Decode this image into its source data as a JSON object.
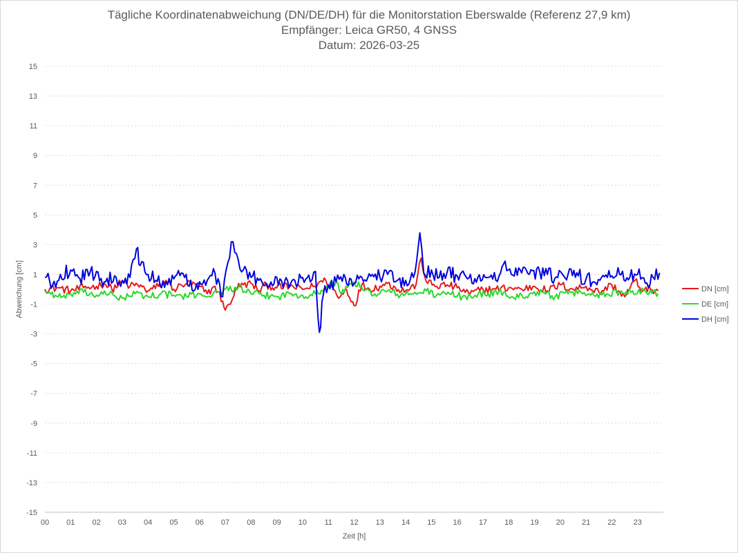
{
  "chart_data": {
    "type": "line",
    "title": "Tägliche Koordinatenabweichung (DN/DE/DH) für die Monitorstation Eberswalde (Referenz 27,9 km)",
    "subtitle": "Empfänger: Leica GR50, 4 GNSS",
    "date_line": "Datum: 2026-03-25",
    "xlabel": "Zeit [h]",
    "ylabel": "Abweichung [cm]",
    "xlim": [
      0,
      24
    ],
    "ylim": [
      -15,
      15
    ],
    "x_ticks": [
      "00",
      "01",
      "02",
      "03",
      "04",
      "05",
      "06",
      "07",
      "08",
      "09",
      "10",
      "11",
      "12",
      "13",
      "14",
      "15",
      "16",
      "17",
      "18",
      "19",
      "20",
      "21",
      "22",
      "23"
    ],
    "y_ticks": [
      15,
      13,
      11,
      9,
      7,
      5,
      3,
      1,
      -1,
      -3,
      -5,
      -7,
      -9,
      -11,
      -13,
      -15
    ],
    "y_tick_labels": [
      "15",
      "13",
      "11",
      "9",
      "7",
      "5",
      "3",
      "1",
      "-1",
      "-3",
      "-5",
      "-7",
      "-9",
      "-11",
      "-13",
      "-15"
    ],
    "grid": true,
    "legend_position": "right",
    "series": [
      {
        "name": "DN [cm]",
        "color": "#e31a1c",
        "points": [
          [
            0.0,
            0.0
          ],
          [
            0.5,
            0.1
          ],
          [
            1.0,
            -0.1
          ],
          [
            1.5,
            0.1
          ],
          [
            2.0,
            0.2
          ],
          [
            2.3,
            0.4
          ],
          [
            2.6,
            0.0
          ],
          [
            3.0,
            0.5
          ],
          [
            3.3,
            0.2
          ],
          [
            3.6,
            0.3
          ],
          [
            4.0,
            -0.1
          ],
          [
            4.4,
            0.2
          ],
          [
            4.7,
            0.6
          ],
          [
            5.0,
            0.0
          ],
          [
            5.5,
            0.4
          ],
          [
            6.0,
            0.2
          ],
          [
            6.3,
            -0.3
          ],
          [
            6.6,
            0.2
          ],
          [
            6.9,
            -0.8
          ],
          [
            7.0,
            -1.4
          ],
          [
            7.2,
            -1.0
          ],
          [
            7.4,
            0.1
          ],
          [
            7.7,
            0.3
          ],
          [
            8.0,
            0.4
          ],
          [
            8.3,
            -0.1
          ],
          [
            8.6,
            0.3
          ],
          [
            9.0,
            0.1
          ],
          [
            9.5,
            0.2
          ],
          [
            10.0,
            0.0
          ],
          [
            10.4,
            0.2
          ],
          [
            10.6,
            0.4
          ],
          [
            10.9,
            0.6
          ],
          [
            11.2,
            0.0
          ],
          [
            11.4,
            -0.6
          ],
          [
            11.7,
            0.0
          ],
          [
            12.0,
            -1.1
          ],
          [
            12.3,
            0.3
          ],
          [
            12.6,
            0.0
          ],
          [
            13.0,
            0.2
          ],
          [
            13.3,
            0.4
          ],
          [
            13.6,
            0.1
          ],
          [
            14.0,
            -0.1
          ],
          [
            14.4,
            0.3
          ],
          [
            14.6,
            2.1
          ],
          [
            14.8,
            0.5
          ],
          [
            15.2,
            0.2
          ],
          [
            15.6,
            0.3
          ],
          [
            16.0,
            0.1
          ],
          [
            16.5,
            -0.3
          ],
          [
            17.0,
            0.0
          ],
          [
            17.5,
            0.0
          ],
          [
            18.0,
            0.1
          ],
          [
            18.5,
            0.0
          ],
          [
            19.0,
            0.2
          ],
          [
            19.5,
            -0.1
          ],
          [
            20.0,
            0.3
          ],
          [
            20.5,
            0.0
          ],
          [
            21.0,
            0.2
          ],
          [
            21.5,
            -0.2
          ],
          [
            22.0,
            0.3
          ],
          [
            22.5,
            -0.5
          ],
          [
            22.9,
            0.6
          ],
          [
            23.2,
            -0.1
          ],
          [
            23.5,
            0.0
          ],
          [
            23.8,
            -0.1
          ]
        ]
      },
      {
        "name": "DE [cm]",
        "color": "#2bd82b",
        "points": [
          [
            0.0,
            -0.1
          ],
          [
            0.4,
            -0.4
          ],
          [
            0.8,
            -0.6
          ],
          [
            1.0,
            -0.3
          ],
          [
            1.5,
            -0.2
          ],
          [
            2.0,
            -0.4
          ],
          [
            2.5,
            -0.3
          ],
          [
            3.0,
            -0.6
          ],
          [
            3.5,
            -0.3
          ],
          [
            4.0,
            -0.5
          ],
          [
            4.5,
            -0.3
          ],
          [
            5.0,
            -0.4
          ],
          [
            5.5,
            -0.5
          ],
          [
            6.0,
            -0.3
          ],
          [
            6.5,
            -0.4
          ],
          [
            7.0,
            0.0
          ],
          [
            7.5,
            0.1
          ],
          [
            8.0,
            -0.3
          ],
          [
            8.5,
            -0.4
          ],
          [
            9.0,
            -0.5
          ],
          [
            9.5,
            -0.3
          ],
          [
            10.0,
            -0.4
          ],
          [
            10.5,
            -0.3
          ],
          [
            10.9,
            0.1
          ],
          [
            11.3,
            0.5
          ],
          [
            11.5,
            -0.3
          ],
          [
            11.8,
            0.3
          ],
          [
            12.0,
            0.5
          ],
          [
            12.4,
            -0.1
          ],
          [
            12.8,
            -0.3
          ],
          [
            13.3,
            -0.1
          ],
          [
            13.8,
            -0.4
          ],
          [
            14.3,
            -0.3
          ],
          [
            14.8,
            -0.1
          ],
          [
            15.2,
            -0.4
          ],
          [
            15.7,
            -0.3
          ],
          [
            16.2,
            -0.5
          ],
          [
            16.7,
            -0.4
          ],
          [
            17.2,
            -0.3
          ],
          [
            17.8,
            -0.2
          ],
          [
            18.2,
            -0.6
          ],
          [
            18.8,
            -0.3
          ],
          [
            19.3,
            -0.2
          ],
          [
            19.8,
            -0.5
          ],
          [
            20.3,
            -0.3
          ],
          [
            20.8,
            -0.2
          ],
          [
            21.3,
            -0.4
          ],
          [
            21.8,
            -0.3
          ],
          [
            22.3,
            -0.2
          ],
          [
            22.8,
            -0.1
          ],
          [
            23.3,
            -0.1
          ],
          [
            23.8,
            -0.3
          ]
        ]
      },
      {
        "name": "DH [cm]",
        "color": "#0000dd",
        "points": [
          [
            0.0,
            0.8
          ],
          [
            0.3,
            0.3
          ],
          [
            0.6,
            1.0
          ],
          [
            1.0,
            1.3
          ],
          [
            1.3,
            0.8
          ],
          [
            1.7,
            0.9
          ],
          [
            2.0,
            1.2
          ],
          [
            2.3,
            0.5
          ],
          [
            2.7,
            0.9
          ],
          [
            3.0,
            0.6
          ],
          [
            3.3,
            0.8
          ],
          [
            3.55,
            2.7
          ],
          [
            3.7,
            1.6
          ],
          [
            4.0,
            1.0
          ],
          [
            4.3,
            0.6
          ],
          [
            4.7,
            0.5
          ],
          [
            5.0,
            0.7
          ],
          [
            5.3,
            1.1
          ],
          [
            5.6,
            0.2
          ],
          [
            6.0,
            0.5
          ],
          [
            6.3,
            0.6
          ],
          [
            6.6,
            1.1
          ],
          [
            6.9,
            -0.5
          ],
          [
            7.1,
            1.8
          ],
          [
            7.3,
            3.2
          ],
          [
            7.5,
            2.0
          ],
          [
            7.7,
            1.3
          ],
          [
            8.0,
            0.8
          ],
          [
            8.3,
            0.6
          ],
          [
            8.6,
            0.4
          ],
          [
            9.0,
            0.8
          ],
          [
            9.3,
            0.5
          ],
          [
            9.7,
            0.6
          ],
          [
            10.0,
            0.8
          ],
          [
            10.3,
            0.5
          ],
          [
            10.5,
            1.2
          ],
          [
            10.65,
            -2.9
          ],
          [
            10.8,
            -0.4
          ],
          [
            11.0,
            0.3
          ],
          [
            11.3,
            0.5
          ],
          [
            11.6,
            1.0
          ],
          [
            12.0,
            0.4
          ],
          [
            12.3,
            0.8
          ],
          [
            12.7,
            1.0
          ],
          [
            13.0,
            0.8
          ],
          [
            13.3,
            1.0
          ],
          [
            13.6,
            0.5
          ],
          [
            14.0,
            0.6
          ],
          [
            14.3,
            0.8
          ],
          [
            14.55,
            3.8
          ],
          [
            14.7,
            1.1
          ],
          [
            15.0,
            1.3
          ],
          [
            15.3,
            0.8
          ],
          [
            15.6,
            1.1
          ],
          [
            16.0,
            0.9
          ],
          [
            16.4,
            0.7
          ],
          [
            16.8,
            0.8
          ],
          [
            17.2,
            0.8
          ],
          [
            17.5,
            0.6
          ],
          [
            17.8,
            1.7
          ],
          [
            18.1,
            1.0
          ],
          [
            18.5,
            1.1
          ],
          [
            18.8,
            1.0
          ],
          [
            19.2,
            1.2
          ],
          [
            19.5,
            1.0
          ],
          [
            19.9,
            0.8
          ],
          [
            20.3,
            1.0
          ],
          [
            20.7,
            0.9
          ],
          [
            21.0,
            0.7
          ],
          [
            21.3,
            0.5
          ],
          [
            21.6,
            0.8
          ],
          [
            22.0,
            0.9
          ],
          [
            22.3,
            1.0
          ],
          [
            22.7,
            0.8
          ],
          [
            23.0,
            1.0
          ],
          [
            23.3,
            0.4
          ],
          [
            23.6,
            0.8
          ],
          [
            23.85,
            1.1
          ]
        ]
      }
    ]
  }
}
